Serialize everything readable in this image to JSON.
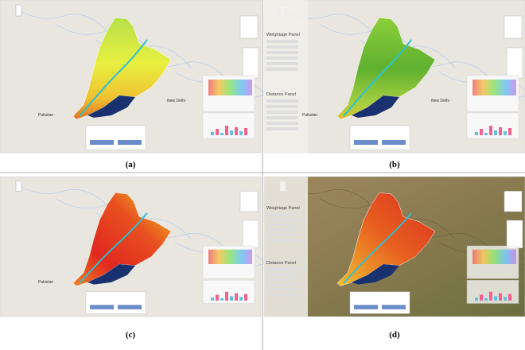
{
  "panels": [
    {
      "caption": "(a)",
      "place": "Pakistan",
      "city": "New Delhi"
    },
    {
      "caption": "(b)",
      "place": "Pakistan",
      "city": "New Delhi",
      "side_panels": [
        "Weightage Panel",
        "Distance Panel"
      ]
    },
    {
      "caption": "(c)",
      "place": "Pakistan"
    },
    {
      "caption": "(d)",
      "side_panels": [
        "Weightage Panel",
        "Distance Panel"
      ]
    }
  ]
}
